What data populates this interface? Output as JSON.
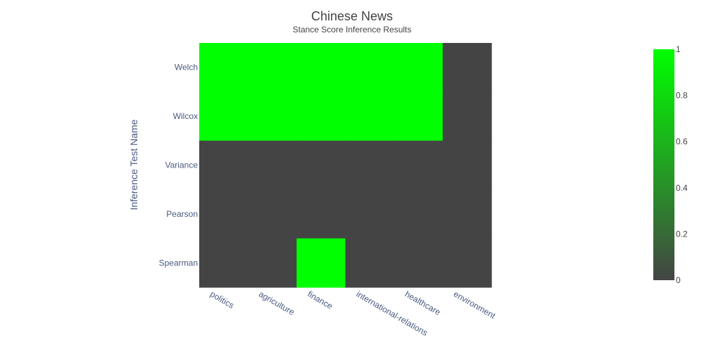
{
  "chart_data": {
    "type": "heatmap",
    "title": "Chinese News",
    "subtitle": "Stance Score Inference Results",
    "xlabel": "",
    "ylabel": "Inference Test Name",
    "x_categories": [
      "politics",
      "agriculture",
      "finance",
      "international-relations",
      "healthcare",
      "environment"
    ],
    "y_categories": [
      "Welch",
      "Wilcox",
      "Variance",
      "Pearson",
      "Spearman"
    ],
    "z": [
      [
        1,
        1,
        1,
        1,
        1,
        0
      ],
      [
        1,
        1,
        1,
        1,
        1,
        0
      ],
      [
        0,
        0,
        0,
        0,
        0,
        0
      ],
      [
        0,
        0,
        0,
        0,
        0,
        0
      ],
      [
        0,
        0,
        1,
        0,
        0,
        0
      ]
    ],
    "zrange": [
      0,
      1
    ],
    "colorscale": [
      "#444444",
      "#00ff00"
    ],
    "colorbar_ticks": [
      "0",
      "0.2",
      "0.4",
      "0.6",
      "0.8",
      "1"
    ],
    "colorbar_tick_values": [
      0,
      0.2,
      0.4,
      0.6,
      0.8,
      1
    ]
  }
}
